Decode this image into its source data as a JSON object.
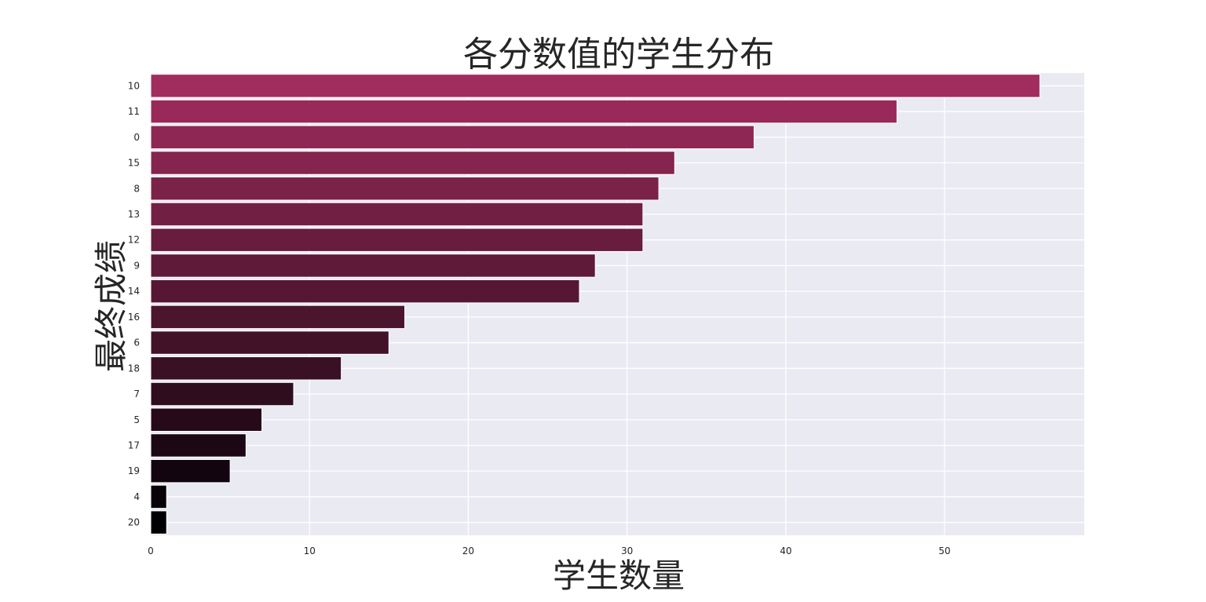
{
  "chart_data": {
    "type": "bar",
    "orientation": "horizontal",
    "title": "各分数值的学生分布",
    "xlabel": "学生数量",
    "ylabel": "最终成绩",
    "categories": [
      "10",
      "11",
      "0",
      "15",
      "8",
      "13",
      "12",
      "9",
      "14",
      "16",
      "6",
      "18",
      "7",
      "5",
      "17",
      "19",
      "4",
      "20"
    ],
    "values": [
      56,
      47,
      38,
      33,
      32,
      31,
      31,
      28,
      27,
      16,
      15,
      12,
      9,
      7,
      6,
      5,
      1,
      1
    ],
    "xticks": [
      "0",
      "10",
      "20",
      "30",
      "40",
      "50"
    ],
    "xlim": [
      0,
      58.8
    ],
    "grid": true,
    "palette": {
      "start": "#000004",
      "end": "#a12c5e"
    },
    "background": "#eaeaf2"
  }
}
